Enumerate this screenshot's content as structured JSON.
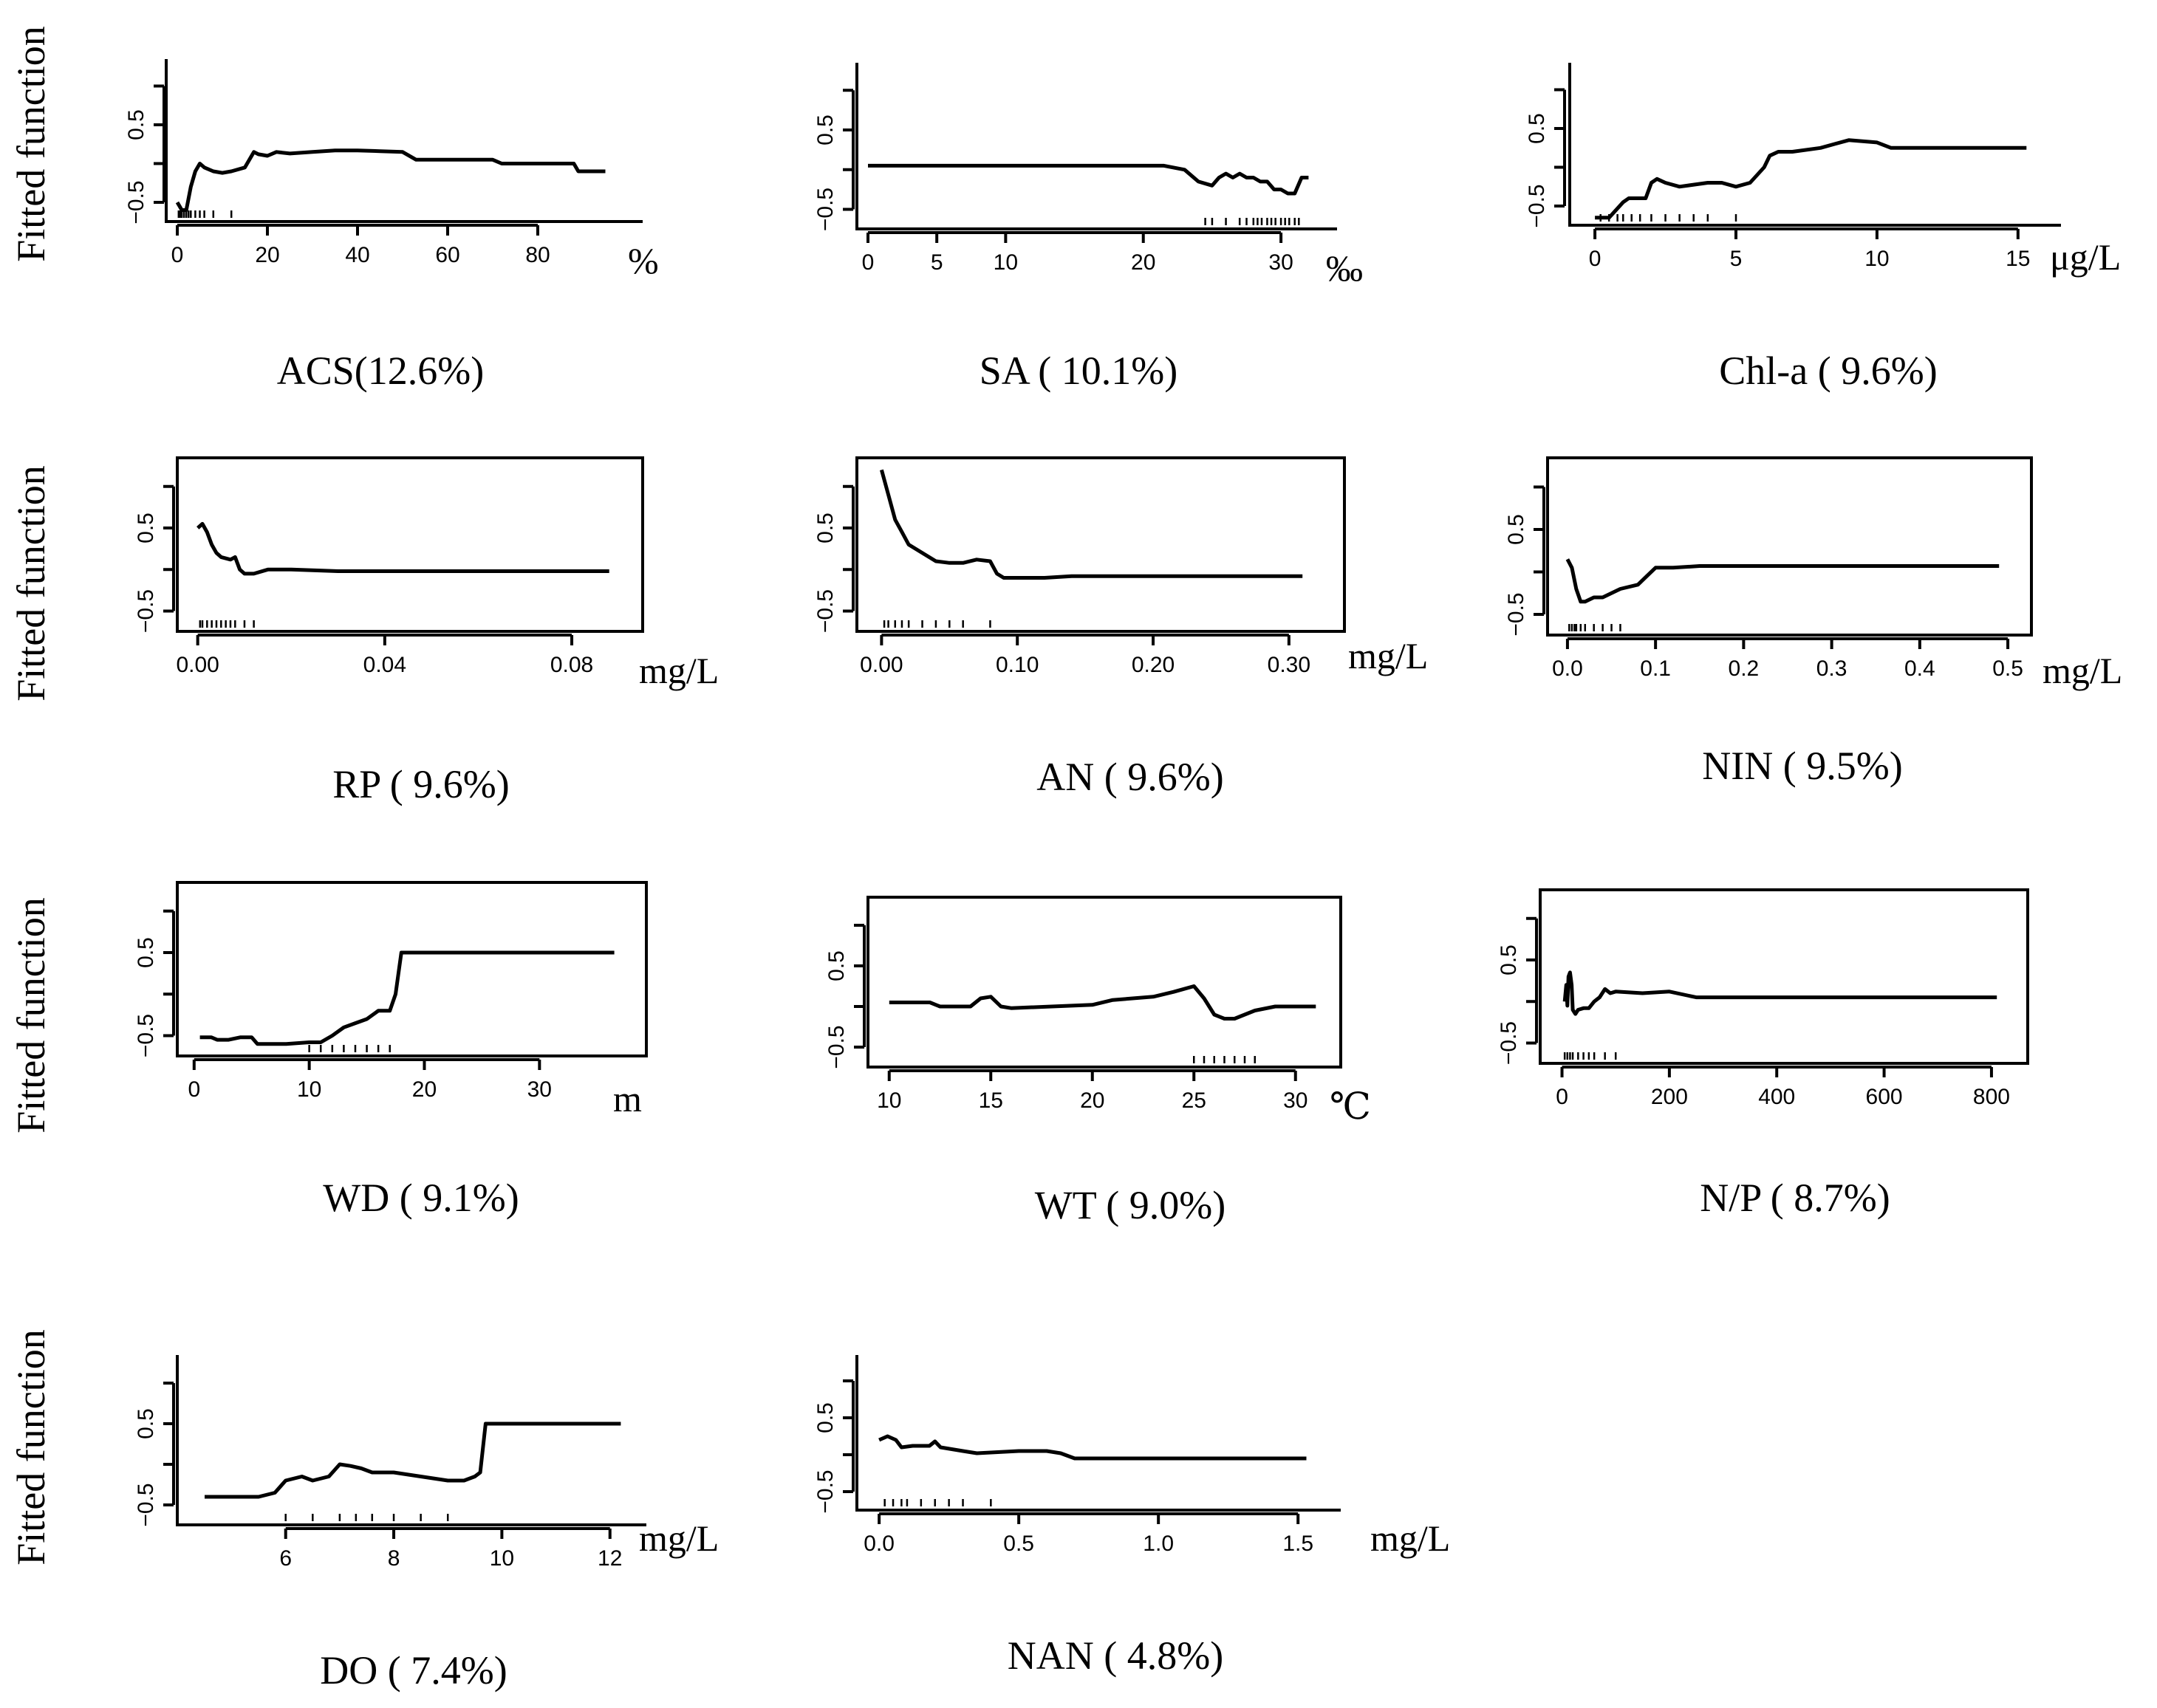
{
  "figure": {
    "y_axis_title": "Fitted function"
  },
  "chart_data": [
    {
      "type": "line",
      "title": "ACS(12.6%)",
      "unit": "%",
      "ylabel": "Fitted function",
      "xlim": [
        0,
        100
      ],
      "ylim": [
        -0.7,
        1.3
      ],
      "xticks": [
        0,
        20,
        40,
        60,
        80
      ],
      "xtick_labels": [
        "0",
        "20",
        "40",
        "60",
        "80"
      ],
      "yticks": [
        -0.5,
        0,
        0.5,
        1
      ],
      "ytick_labels": [
        "-0.5",
        "",
        "0.5",
        ""
      ],
      "x": [
        0,
        0.5,
        1,
        2,
        3,
        4,
        5,
        6,
        8,
        10,
        12,
        15,
        17,
        18,
        20,
        22,
        25,
        30,
        35,
        40,
        45,
        50,
        53,
        55,
        60,
        65,
        70,
        72,
        80,
        85,
        88,
        89,
        95
      ],
      "y": [
        -0.5,
        -0.55,
        -0.6,
        -0.6,
        -0.3,
        -0.1,
        0,
        -0.05,
        -0.1,
        -0.12,
        -0.1,
        -0.05,
        0.15,
        0.12,
        0.1,
        0.15,
        0.13,
        0.15,
        0.17,
        0.17,
        0.16,
        0.15,
        0.05,
        0.05,
        0.05,
        0.05,
        0.05,
        0,
        0,
        0,
        0,
        -0.1,
        -0.1
      ],
      "rug": [
        0.3,
        0.7,
        1,
        1.5,
        2,
        2.5,
        3,
        4,
        5,
        6,
        8,
        12
      ]
    },
    {
      "type": "line",
      "title": "SA ( 10.1%)",
      "unit": "‰",
      "ylabel": "Fitted function",
      "xlim": [
        0,
        33
      ],
      "ylim": [
        -0.7,
        1.3
      ],
      "xticks": [
        0,
        5,
        10,
        20,
        30
      ],
      "xtick_labels": [
        "0",
        "5",
        "10",
        "20",
        "30"
      ],
      "yticks": [
        -0.5,
        0,
        0.5,
        1
      ],
      "ytick_labels": [
        "-0.5",
        "",
        "0.5",
        ""
      ],
      "x": [
        0,
        20,
        21.5,
        23,
        24,
        25,
        25.5,
        26,
        26.5,
        27,
        27.5,
        28,
        28.5,
        29,
        29.5,
        30,
        30.5,
        31,
        31.5,
        32
      ],
      "y": [
        0.05,
        0.05,
        0.05,
        0,
        -0.15,
        -0.2,
        -0.1,
        -0.05,
        -0.1,
        -0.05,
        -0.1,
        -0.1,
        -0.15,
        -0.15,
        -0.25,
        -0.25,
        -0.3,
        -0.3,
        -0.1,
        -0.1
      ],
      "rug": [
        24.5,
        25,
        26,
        27,
        27.5,
        28,
        28.3,
        28.6,
        29,
        29.3,
        29.6,
        30,
        30.3,
        30.6,
        31,
        31.3
      ]
    },
    {
      "type": "line",
      "title": "Chl-a ( 9.6%)",
      "unit": "μg/L",
      "ylabel": "Fitted function",
      "xlim": [
        -0.5,
        16
      ],
      "ylim": [
        -0.7,
        1.3
      ],
      "xticks": [
        0,
        5,
        10,
        15
      ],
      "xtick_labels": [
        "0",
        "5",
        "10",
        "15"
      ],
      "yticks": [
        -0.5,
        0,
        0.5,
        1
      ],
      "ytick_labels": [
        "-0.5",
        "",
        "0.5",
        ""
      ],
      "x": [
        0,
        0.5,
        1,
        1.2,
        1.5,
        1.8,
        2,
        2.2,
        2.5,
        3,
        4,
        4.5,
        5,
        5.5,
        6,
        6.2,
        6.5,
        7,
        8,
        8.5,
        9,
        10,
        10.5,
        15.3
      ],
      "y": [
        -0.65,
        -0.65,
        -0.45,
        -0.4,
        -0.4,
        -0.4,
        -0.2,
        -0.15,
        -0.2,
        -0.25,
        -0.2,
        -0.2,
        -0.25,
        -0.2,
        0,
        0.15,
        0.2,
        0.2,
        0.25,
        0.3,
        0.35,
        0.32,
        0.25,
        0.25
      ],
      "rug": [
        0.2,
        0.5,
        0.8,
        1,
        1.3,
        1.6,
        2,
        2.5,
        3,
        3.5,
        4,
        5
      ]
    },
    {
      "type": "line",
      "title": "RP ( 9.6%)",
      "unit": "mg/L",
      "ylabel": "Fitted function",
      "xlim": [
        -0.002,
        0.092
      ],
      "ylim": [
        -0.7,
        1.3
      ],
      "xticks": [
        0,
        0.04,
        0.08
      ],
      "xtick_labels": [
        "0.00",
        "0.04",
        "0.08"
      ],
      "yticks": [
        -0.5,
        0,
        0.5,
        1
      ],
      "ytick_labels": [
        "-0.5",
        "",
        "0.5",
        ""
      ],
      "x": [
        0,
        0.001,
        0.002,
        0.003,
        0.004,
        0.005,
        0.007,
        0.008,
        0.009,
        0.01,
        0.012,
        0.015,
        0.02,
        0.03,
        0.05,
        0.088
      ],
      "y": [
        0.5,
        0.55,
        0.45,
        0.3,
        0.2,
        0.15,
        0.12,
        0.15,
        0.0,
        -0.05,
        -0.05,
        0.0,
        0.0,
        -0.02,
        -0.02,
        -0.02
      ],
      "rug": [
        0.0005,
        0.001,
        0.002,
        0.003,
        0.004,
        0.005,
        0.006,
        0.007,
        0.008,
        0.01,
        0.012
      ]
    },
    {
      "type": "line",
      "title": "AN ( 9.6%)",
      "unit": "mg/L",
      "ylabel": "Fitted function",
      "xlim": [
        -0.01,
        0.33
      ],
      "ylim": [
        -0.7,
        1.3
      ],
      "xticks": [
        0,
        0.1,
        0.2,
        0.3
      ],
      "xtick_labels": [
        "0.00",
        "0.10",
        "0.20",
        "0.30"
      ],
      "yticks": [
        -0.5,
        0,
        0.5,
        1
      ],
      "ytick_labels": [
        "-0.5",
        "",
        "0.5",
        ""
      ],
      "x": [
        0,
        0.005,
        0.01,
        0.015,
        0.02,
        0.03,
        0.04,
        0.05,
        0.06,
        0.07,
        0.08,
        0.085,
        0.09,
        0.1,
        0.12,
        0.14,
        0.18,
        0.31
      ],
      "y": [
        1.2,
        0.9,
        0.6,
        0.45,
        0.3,
        0.2,
        0.1,
        0.08,
        0.08,
        0.12,
        0.1,
        -0.05,
        -0.1,
        -0.1,
        -0.1,
        -0.08,
        -0.08,
        -0.08
      ],
      "rug": [
        0.002,
        0.005,
        0.01,
        0.015,
        0.02,
        0.03,
        0.04,
        0.05,
        0.06,
        0.08
      ]
    },
    {
      "type": "line",
      "title": "NIN ( 9.5%)",
      "unit": "mg/L",
      "ylabel": "Fitted function",
      "xlim": [
        -0.01,
        0.51
      ],
      "ylim": [
        -0.7,
        1.3
      ],
      "xticks": [
        0,
        0.1,
        0.2,
        0.3,
        0.4,
        0.5
      ],
      "xtick_labels": [
        "0.0",
        "0.1",
        "0.2",
        "0.3",
        "0.4",
        "0.5"
      ],
      "yticks": [
        -0.5,
        0,
        0.5,
        1
      ],
      "ytick_labels": [
        "-0.5",
        "",
        "0.5",
        ""
      ],
      "x": [
        0,
        0.005,
        0.01,
        0.015,
        0.02,
        0.03,
        0.04,
        0.05,
        0.06,
        0.08,
        0.09,
        0.1,
        0.12,
        0.15,
        0.2,
        0.49
      ],
      "y": [
        0.15,
        0.05,
        -0.2,
        -0.35,
        -0.35,
        -0.3,
        -0.3,
        -0.25,
        -0.2,
        -0.15,
        -0.05,
        0.05,
        0.05,
        0.07,
        0.07,
        0.07
      ],
      "rug": [
        0.002,
        0.005,
        0.008,
        0.01,
        0.015,
        0.02,
        0.03,
        0.04,
        0.05,
        0.06
      ]
    },
    {
      "type": "line",
      "title": "WD ( 9.1%)",
      "unit": "m",
      "ylabel": "Fitted function",
      "xlim": [
        -0.5,
        38
      ],
      "ylim": [
        -0.7,
        1.3
      ],
      "xticks": [
        0,
        10,
        20,
        30
      ],
      "xtick_labels": [
        "0",
        "10",
        "20",
        "30"
      ],
      "yticks": [
        -0.5,
        0,
        0.5,
        1
      ],
      "ytick_labels": [
        "-0.5",
        "",
        "0.5",
        ""
      ],
      "x": [
        0.5,
        1.5,
        2,
        3,
        4,
        5,
        5.5,
        6,
        8,
        10,
        11,
        12,
        13,
        14,
        15,
        16,
        17,
        17.5,
        18,
        20,
        36.5
      ],
      "y": [
        -0.52,
        -0.52,
        -0.55,
        -0.55,
        -0.52,
        -0.52,
        -0.6,
        -0.6,
        -0.6,
        -0.58,
        -0.58,
        -0.5,
        -0.4,
        -0.35,
        -0.3,
        -0.2,
        -0.2,
        0.0,
        0.5,
        0.5,
        0.5
      ],
      "rug": [
        10,
        11,
        12,
        13,
        14,
        15,
        16,
        17
      ]
    },
    {
      "type": "line",
      "title": "WT ( 9.0%)",
      "unit": "℃",
      "ylabel": "Fitted function",
      "xlim": [
        9.5,
        31.5
      ],
      "ylim": [
        -0.7,
        1.3
      ],
      "xticks": [
        10,
        15,
        20,
        25,
        30
      ],
      "xtick_labels": [
        "10",
        "15",
        "20",
        "25",
        "30"
      ],
      "yticks": [
        -0.5,
        0,
        0.5,
        1
      ],
      "ytick_labels": [
        "-0.5",
        "",
        "0.5",
        ""
      ],
      "x": [
        10,
        12,
        12.5,
        14,
        14.5,
        15,
        15.5,
        16,
        18,
        20,
        21,
        23,
        24,
        25,
        25.5,
        26,
        26.5,
        27,
        27.5,
        28,
        29,
        31
      ],
      "y": [
        0.05,
        0.05,
        0.0,
        0.0,
        0.1,
        0.12,
        0.0,
        -0.02,
        0.0,
        0.02,
        0.08,
        0.12,
        0.18,
        0.25,
        0.1,
        -0.1,
        -0.15,
        -0.15,
        -0.1,
        -0.05,
        0.0,
        0.0
      ],
      "rug": [
        25,
        25.5,
        26,
        26.5,
        27,
        27.5,
        28
      ]
    },
    {
      "type": "line",
      "title": "N/P ( 8.7%)",
      "unit": "",
      "ylabel": "Fitted function",
      "xlim": [
        -20,
        840
      ],
      "ylim": [
        -0.7,
        1.3
      ],
      "xticks": [
        0,
        200,
        400,
        600,
        800
      ],
      "xtick_labels": [
        "0",
        "200",
        "400",
        "600",
        "800"
      ],
      "yticks": [
        -0.5,
        0,
        0.5,
        1
      ],
      "ytick_labels": [
        "-0.5",
        "",
        "0.5",
        ""
      ],
      "x": [
        5,
        8,
        10,
        12,
        15,
        18,
        20,
        25,
        30,
        40,
        50,
        60,
        70,
        80,
        90,
        100,
        150,
        200,
        250,
        300,
        400,
        810
      ],
      "y": [
        0.0,
        0.2,
        -0.05,
        0.3,
        0.35,
        0.2,
        -0.1,
        -0.15,
        -0.1,
        -0.08,
        -0.08,
        0.0,
        0.05,
        0.15,
        0.1,
        0.12,
        0.1,
        0.12,
        0.05,
        0.05,
        0.05,
        0.05
      ],
      "rug": [
        5,
        10,
        15,
        20,
        30,
        40,
        50,
        60,
        80,
        100
      ]
    },
    {
      "type": "line",
      "title": "DO ( 7.4%)",
      "unit": "mg/L",
      "ylabel": "Fitted function",
      "xlim": [
        4.2,
        12.4
      ],
      "ylim": [
        -0.7,
        1.3
      ],
      "xticks": [
        6,
        8,
        10,
        12
      ],
      "xtick_labels": [
        "6",
        "8",
        "10",
        "12"
      ],
      "yticks": [
        -0.5,
        0,
        0.5,
        1
      ],
      "ytick_labels": [
        "-0.5",
        "",
        "0.5",
        ""
      ],
      "x": [
        4.5,
        5,
        5.5,
        5.8,
        6,
        6.3,
        6.5,
        6.8,
        7,
        7.2,
        7.4,
        7.6,
        8,
        8.5,
        9,
        9.3,
        9.5,
        9.6,
        9.7,
        10,
        12.2
      ],
      "y": [
        -0.4,
        -0.4,
        -0.4,
        -0.35,
        -0.2,
        -0.15,
        -0.2,
        -0.15,
        0.0,
        -0.02,
        -0.05,
        -0.1,
        -0.1,
        -0.15,
        -0.2,
        -0.2,
        -0.15,
        -0.1,
        0.5,
        0.5,
        0.5
      ],
      "rug": [
        6,
        6.5,
        7,
        7.3,
        7.6,
        8,
        8.5,
        9
      ]
    },
    {
      "type": "line",
      "title": "NAN ( 4.8%)",
      "unit": "mg/L",
      "ylabel": "Fitted function",
      "xlim": [
        -0.04,
        1.6
      ],
      "ylim": [
        -0.7,
        1.3
      ],
      "xticks": [
        0,
        0.5,
        1,
        1.5
      ],
      "xtick_labels": [
        "0.0",
        "0.5",
        "1.0",
        "1.5"
      ],
      "yticks": [
        -0.5,
        0,
        0.5,
        1
      ],
      "ytick_labels": [
        "-0.5",
        "",
        "0.5",
        ""
      ],
      "x": [
        0,
        0.03,
        0.06,
        0.08,
        0.12,
        0.18,
        0.2,
        0.22,
        0.3,
        0.35,
        0.5,
        0.6,
        0.65,
        0.7,
        0.8,
        1.0,
        1.53
      ],
      "y": [
        0.2,
        0.25,
        0.2,
        0.1,
        0.12,
        0.12,
        0.18,
        0.1,
        0.05,
        0.02,
        0.05,
        0.05,
        0.02,
        -0.05,
        -0.05,
        -0.05,
        -0.05
      ],
      "rug": [
        0.02,
        0.05,
        0.08,
        0.1,
        0.15,
        0.2,
        0.25,
        0.3,
        0.4
      ]
    }
  ]
}
